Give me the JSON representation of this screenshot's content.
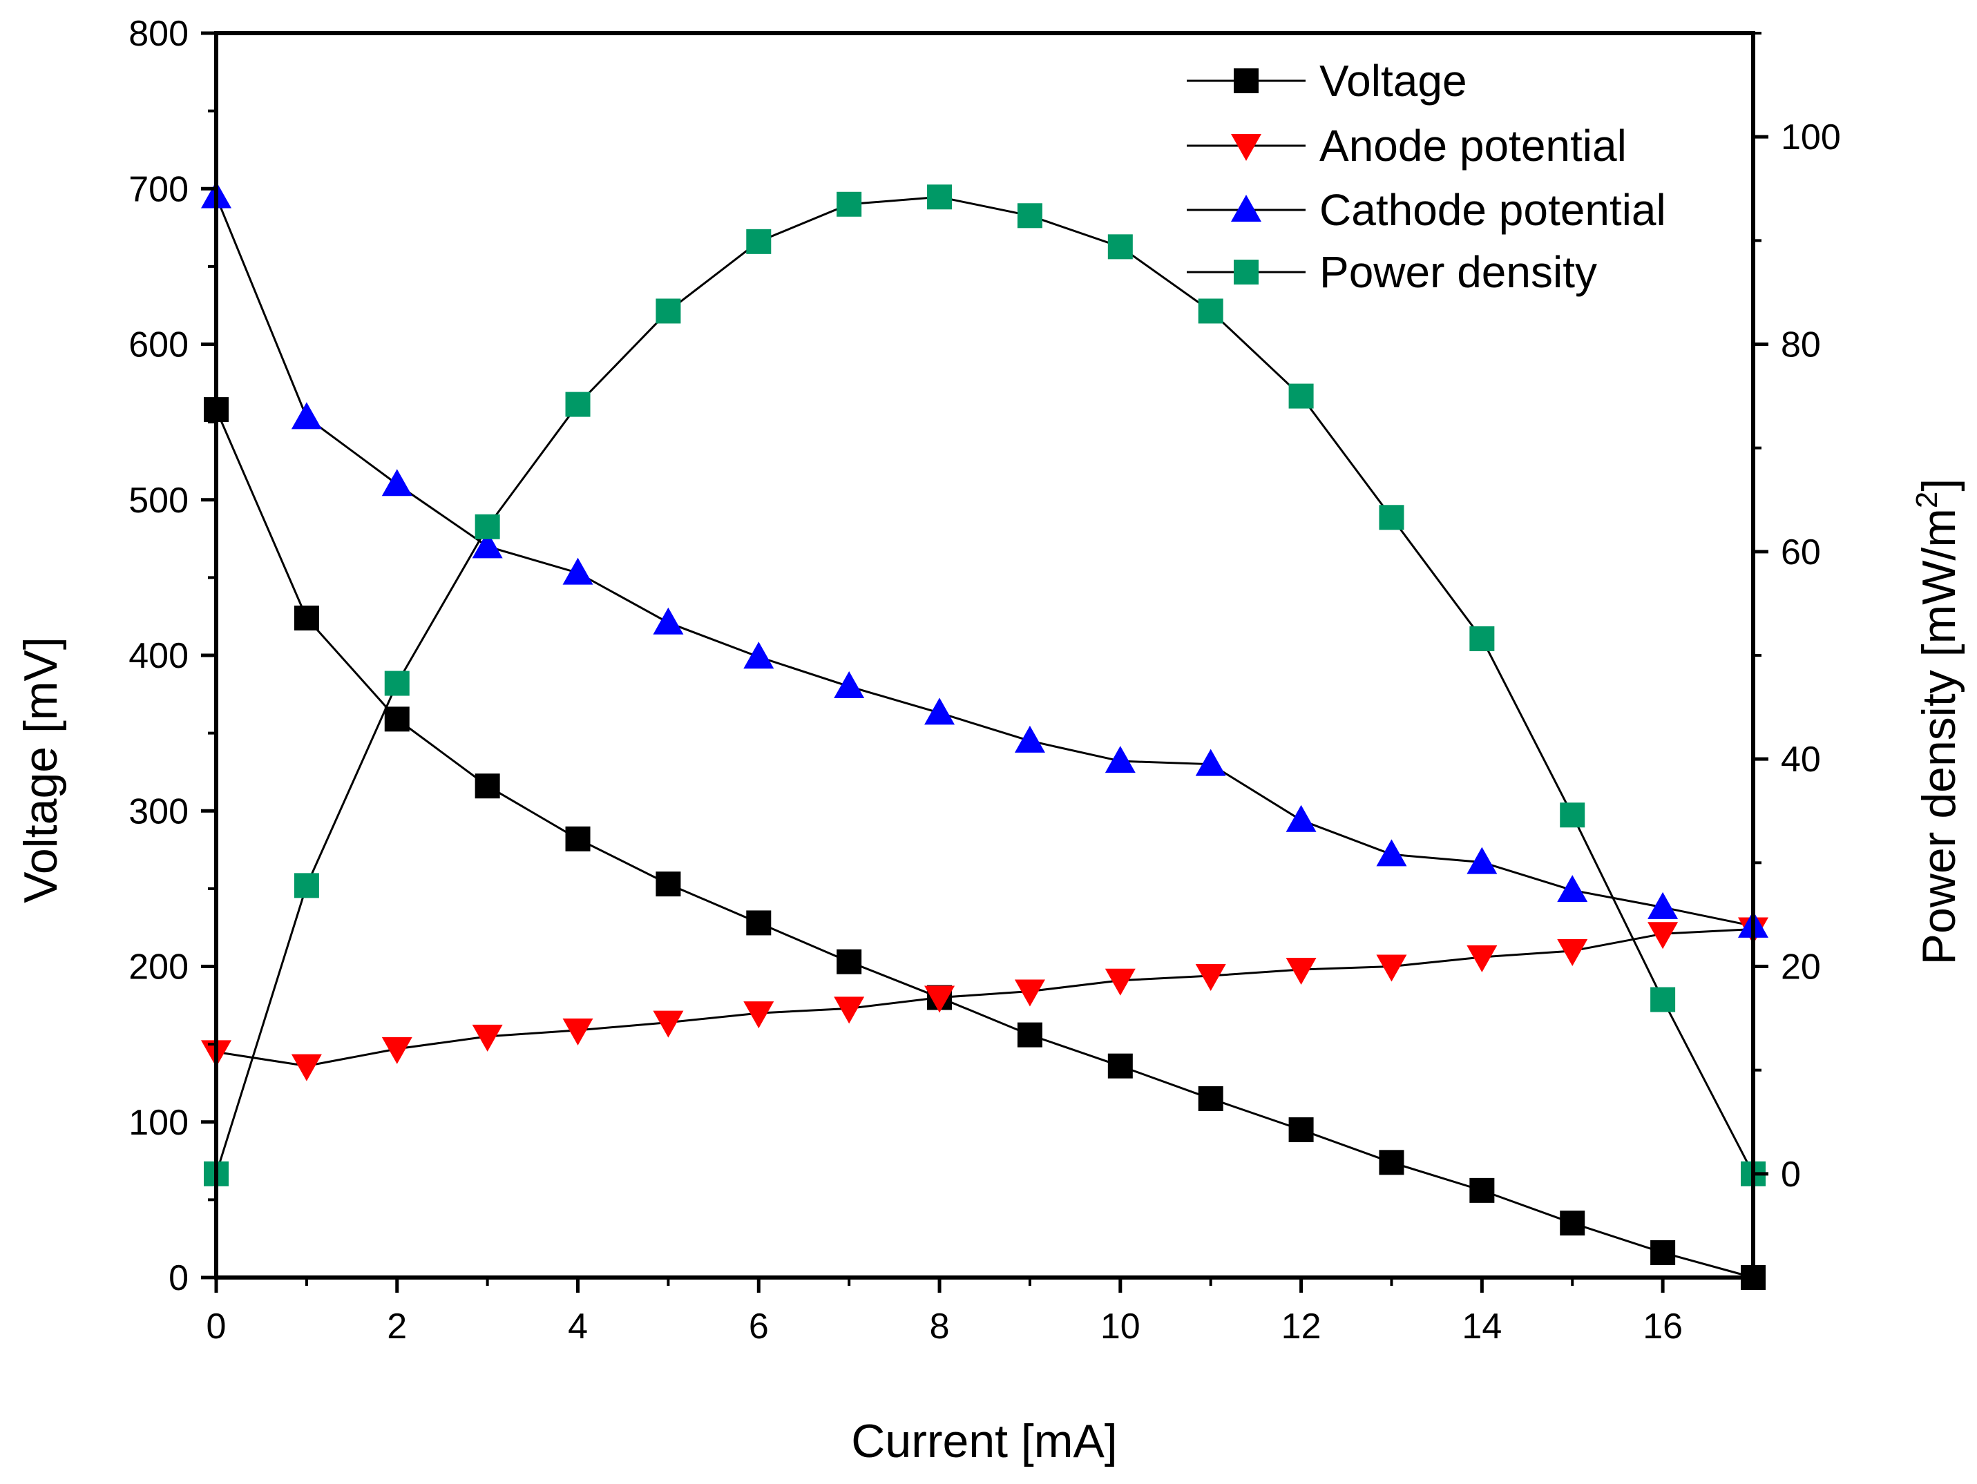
{
  "chart_data": {
    "type": "line",
    "title": "",
    "xlabel": "Current [mA]",
    "ylabel": "Voltage [mV]",
    "y2label": "Power density [mW/m",
    "y2label_sup": "2",
    "y2label_end": "]",
    "xlim": [
      0,
      17
    ],
    "ylim": [
      0,
      800
    ],
    "y2lim": [
      -10,
      110
    ],
    "xticks": [
      "0",
      "2",
      "4",
      "6",
      "8",
      "10",
      "12",
      "14",
      "16"
    ],
    "yticks": [
      "0",
      "100",
      "200",
      "300",
      "400",
      "500",
      "600",
      "700",
      "800"
    ],
    "y2ticks": [
      "0",
      "20",
      "40",
      "60",
      "80",
      "100"
    ],
    "legend_position": "top-right",
    "x": [
      0,
      1,
      2,
      3,
      4,
      5,
      6,
      7,
      8,
      9,
      10,
      11,
      12,
      13,
      14,
      15,
      16,
      17
    ],
    "series": [
      {
        "name": "Voltage",
        "axis": "left",
        "marker": "square",
        "color": "#000000",
        "values": [
          558,
          424,
          359,
          316,
          282,
          253,
          228,
          203,
          180,
          156,
          136,
          115,
          95,
          74,
          56,
          35,
          16,
          0
        ]
      },
      {
        "name": "Anode potential",
        "axis": "left",
        "marker": "triangle-down",
        "color": "#ff0000",
        "values": [
          145,
          136,
          147,
          155,
          159,
          164,
          170,
          173,
          180,
          184,
          191,
          194,
          198,
          200,
          206,
          210,
          221,
          224
        ]
      },
      {
        "name": "Cathode potential",
        "axis": "left",
        "marker": "triangle-up",
        "color": "#0000ff",
        "values": [
          695,
          553,
          510,
          470,
          453,
          421,
          399,
          380,
          363,
          345,
          332,
          330,
          294,
          272,
          267,
          249,
          238,
          226
        ]
      },
      {
        "name": "Power density",
        "axis": "right",
        "marker": "square",
        "color": "#009966",
        "values": [
          0,
          27.8,
          47.3,
          62.4,
          74.2,
          83.2,
          89.9,
          93.5,
          94.2,
          92.4,
          89.4,
          83.2,
          75.0,
          63.3,
          51.6,
          34.6,
          16.8,
          0
        ]
      }
    ]
  }
}
